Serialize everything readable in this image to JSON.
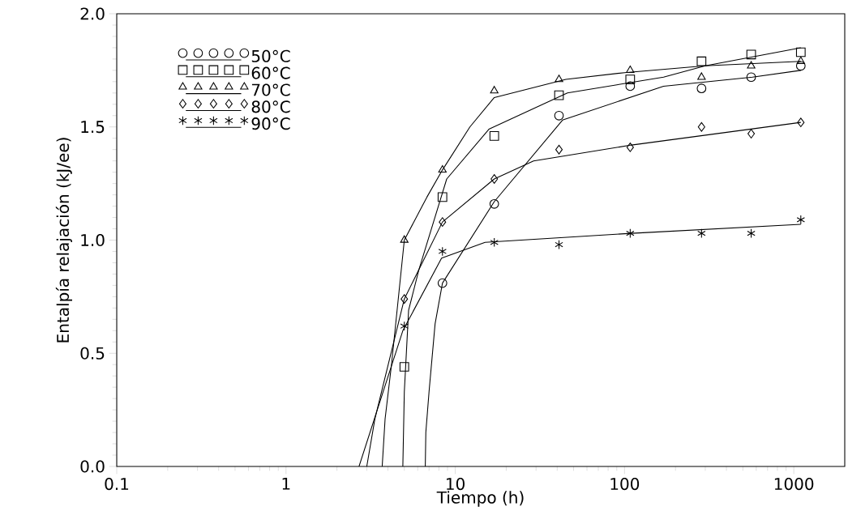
{
  "chart_data": {
    "type": "scatter",
    "xlabel": "Tiempo  (h)",
    "ylabel": "Entalpía relajación (kJ/ee)",
    "log": "x",
    "xlim": [
      0.1,
      2000
    ],
    "ylim": [
      0,
      2.0
    ],
    "xticks": [
      0.1,
      1,
      10,
      100,
      1000
    ],
    "yticks": [
      {
        "value": 0,
        "label": "0.0"
      },
      {
        "value": 0.5,
        "label": "0.5"
      },
      {
        "value": 1.0,
        "label": "1.0"
      },
      {
        "value": 1.5,
        "label": "1.5"
      },
      {
        "value": 2.0,
        "label": "2.0"
      }
    ],
    "legend": "top left",
    "grid": false,
    "series": [
      {
        "name": "50°C",
        "marker": "circle",
        "color": "#000000",
        "x": [
          8.4,
          17,
          41,
          108,
          285,
          560,
          1100
        ],
        "values": [
          0.81,
          1.16,
          1.55,
          1.68,
          1.67,
          1.72,
          1.77
        ]
      },
      {
        "name": "60°C",
        "marker": "square",
        "color": "#000000",
        "x": [
          5,
          8.4,
          17,
          41,
          108,
          285,
          560,
          1100
        ],
        "values": [
          0.44,
          1.19,
          1.46,
          1.64,
          1.71,
          1.79,
          1.82,
          1.83
        ]
      },
      {
        "name": "70°C",
        "marker": "triangle",
        "color": "#000000",
        "x": [
          5,
          8.4,
          17,
          41,
          108,
          285,
          560,
          1100
        ],
        "values": [
          1.0,
          1.31,
          1.66,
          1.71,
          1.75,
          1.72,
          1.77,
          1.79
        ]
      },
      {
        "name": "80°C",
        "marker": "diamond",
        "color": "#000000",
        "x": [
          5,
          8.4,
          17,
          41,
          108,
          285,
          560,
          1100
        ],
        "values": [
          0.74,
          1.08,
          1.27,
          1.4,
          1.41,
          1.5,
          1.47,
          1.52
        ]
      },
      {
        "name": "90°C",
        "marker": "cross",
        "color": "#000000",
        "x": [
          5,
          8.4,
          17,
          41,
          108,
          285,
          560,
          1100
        ],
        "values": [
          0.62,
          0.95,
          0.99,
          0.98,
          1.03,
          1.03,
          1.03,
          1.09
        ]
      },
      {
        "type": "line",
        "marker": "none",
        "color": "#000000",
        "x": [
          6.65,
          6.7,
          7.0,
          7.6,
          8.4,
          17,
          43,
          170,
          570,
          1100
        ],
        "values": [
          0,
          0.15,
          0.33,
          0.63,
          0.81,
          1.17,
          1.53,
          1.68,
          1.72,
          1.75
        ]
      },
      {
        "type": "line",
        "marker": "none",
        "color": "#000000",
        "x": [
          4.9,
          5.0,
          5.3,
          6.1,
          8.9,
          15.8,
          46,
          170,
          300,
          1100
        ],
        "values": [
          0,
          0.33,
          0.69,
          0.87,
          1.27,
          1.49,
          1.65,
          1.72,
          1.77,
          1.85
        ]
      },
      {
        "type": "line",
        "marker": "none",
        "color": "#000000",
        "x": [
          3.7,
          3.85,
          4.2,
          5.0,
          6.8,
          8.4,
          12.2,
          17,
          45,
          100,
          300,
          1100
        ],
        "values": [
          0,
          0.21,
          0.45,
          1.0,
          1.19,
          1.31,
          1.5,
          1.63,
          1.71,
          1.74,
          1.77,
          1.79
        ]
      },
      {
        "type": "line",
        "marker": "none",
        "color": "#000000",
        "x": [
          3.0,
          3.35,
          5.0,
          8.4,
          17,
          29,
          110,
          1100
        ],
        "values": [
          0,
          0.21,
          0.74,
          1.08,
          1.27,
          1.35,
          1.42,
          1.52
        ]
      },
      {
        "type": "line",
        "marker": "none",
        "color": "#000000",
        "x": [
          2.7,
          4.9,
          8.3,
          15,
          110,
          1100
        ],
        "values": [
          0,
          0.6,
          0.92,
          0.99,
          1.03,
          1.07
        ]
      }
    ]
  }
}
